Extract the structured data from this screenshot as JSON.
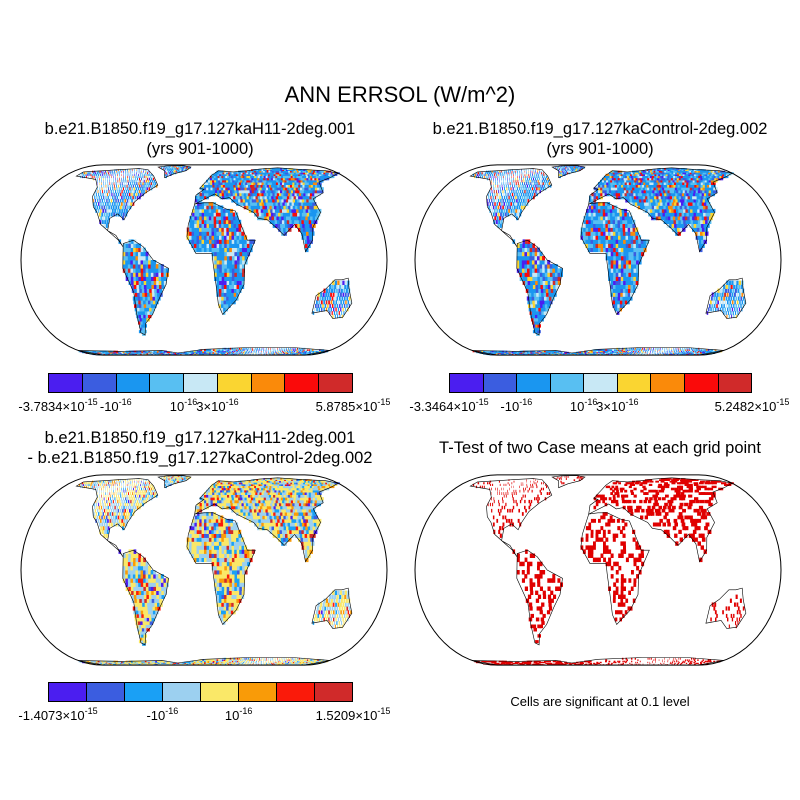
{
  "title": "ANN ERRSOL (W/m^2)",
  "panels": [
    {
      "title_line1": "b.e21.B1850.f19_g17.127kaH11-2deg.001",
      "title_line2": "(yrs 901-1000)",
      "colors": [
        "#4b1ef0",
        "#3b5de0",
        "#1a96f0",
        "#58bff2",
        "#c8e8f5",
        "#fad531",
        "#fa8a0a",
        "#fa0a0a",
        "#d02a2a"
      ],
      "tick_labels": [
        {
          "base": "-3.7834×10",
          "exp": "-15"
        },
        {
          "base": "-10",
          "exp": "-16"
        },
        {
          "base": "10",
          "exp": "-16"
        },
        {
          "base": "3×10",
          "exp": "-16"
        },
        {
          "base": "5.8785×10",
          "exp": "-15"
        }
      ]
    },
    {
      "title_line1": "b.e21.B1850.f19_g17.127kaControl-2deg.002",
      "title_line2": "(yrs 901-1000)",
      "colors": [
        "#4b1ef0",
        "#3b5de0",
        "#1a96f0",
        "#58bff2",
        "#c8e8f5",
        "#fad531",
        "#fa8a0a",
        "#fa0a0a",
        "#d02a2a"
      ],
      "tick_labels": [
        {
          "base": "-3.3464×10",
          "exp": "-15"
        },
        {
          "base": "-10",
          "exp": "-16"
        },
        {
          "base": "10",
          "exp": "-16"
        },
        {
          "base": "3×10",
          "exp": "-16"
        },
        {
          "base": "5.2482×10",
          "exp": "-15"
        }
      ]
    },
    {
      "title_line1": "b.e21.B1850.f19_g17.127kaH11-2deg.001",
      "title_line2": "- b.e21.B1850.f19_g17.127kaControl-2deg.002",
      "colors": [
        "#4b1ef0",
        "#3b5de0",
        "#1aa0f5",
        "#9cd0f0",
        "#fae868",
        "#f99b08",
        "#fa1a0a",
        "#d02a2a"
      ],
      "tick_labels": [
        {
          "base": "-1.4073×10",
          "exp": "-15"
        },
        {
          "base": "-10",
          "exp": "-16"
        },
        {
          "base": "10",
          "exp": "-16"
        },
        {
          "base": "1.5209×10",
          "exp": "-15"
        }
      ]
    },
    {
      "title_line1": "T-Test of two Case means at each grid point",
      "significance_color": "#e00000"
    }
  ],
  "footnote": "Cells are significant at 0.1 level"
}
